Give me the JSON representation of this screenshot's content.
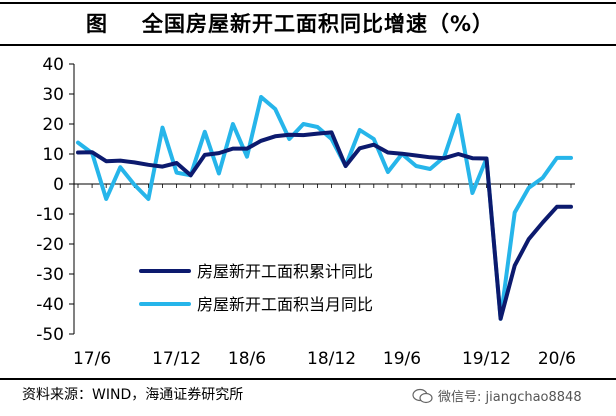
{
  "title": {
    "label": "图",
    "text": "全国房屋新开工面积同比增速（%）"
  },
  "source": "资料来源：WIND，海通证券研究所",
  "watermark": {
    "text": "微信号: jiangchao8848",
    "icon": "wechat-icon"
  },
  "colors": {
    "cumulative": "#0c1a6e",
    "monthly": "#26b5ea",
    "axis": "#000000"
  },
  "chart_data": {
    "type": "line",
    "title": "全国房屋新开工面积同比增速（%）",
    "xlabel": "",
    "ylabel": "",
    "ylim": [
      -50,
      40
    ],
    "yticks": [
      40,
      30,
      20,
      10,
      0,
      -10,
      -20,
      -30,
      -40,
      -50
    ],
    "x_tick_labels": [
      "17/6",
      "17/12",
      "18/6",
      "18/12",
      "19/6",
      "19/12",
      "20/6"
    ],
    "x": [
      "17/5",
      "17/6",
      "17/7",
      "17/8",
      "17/9",
      "17/10",
      "17/11",
      "17/12",
      "18/2",
      "18/3",
      "18/4",
      "18/5",
      "18/6",
      "18/7",
      "18/8",
      "18/9",
      "18/10",
      "18/11",
      "18/12",
      "19/2",
      "19/3",
      "19/4",
      "19/5",
      "19/6",
      "19/7",
      "19/8",
      "19/9",
      "19/10",
      "19/11",
      "19/12",
      "20/2",
      "20/3",
      "20/4",
      "20/5",
      "20/6",
      "20/7"
    ],
    "grid": false,
    "legend": "lower-middle",
    "series": [
      {
        "name": "房屋新开工面积累计同比",
        "values": [
          10.5,
          10.6,
          7.6,
          7.8,
          7.2,
          6.4,
          5.8,
          7.0,
          2.9,
          9.7,
          10.3,
          11.8,
          11.8,
          14.4,
          15.9,
          16.4,
          16.3,
          16.8,
          17.2,
          6.0,
          11.9,
          13.1,
          10.5,
          10.1,
          9.5,
          8.9,
          8.6,
          10.0,
          8.6,
          8.5,
          -44.9,
          -27.2,
          -18.4,
          -12.8,
          -7.6,
          -7.6
        ]
      },
      {
        "name": "房屋新开工面积当月同比",
        "values": [
          13.8,
          10.3,
          -5.0,
          5.6,
          -0.2,
          -5.0,
          18.8,
          3.8,
          2.9,
          17.4,
          3.5,
          20.0,
          9.1,
          29.0,
          25.0,
          15.0,
          20.0,
          19.0,
          15.0,
          6.0,
          18.0,
          15.0,
          4.0,
          10.0,
          6.0,
          5.0,
          9.0,
          23.0,
          -3.0,
          8.5,
          -44.9,
          -9.5,
          -1.3,
          2.1,
          8.7,
          8.7
        ]
      }
    ]
  }
}
